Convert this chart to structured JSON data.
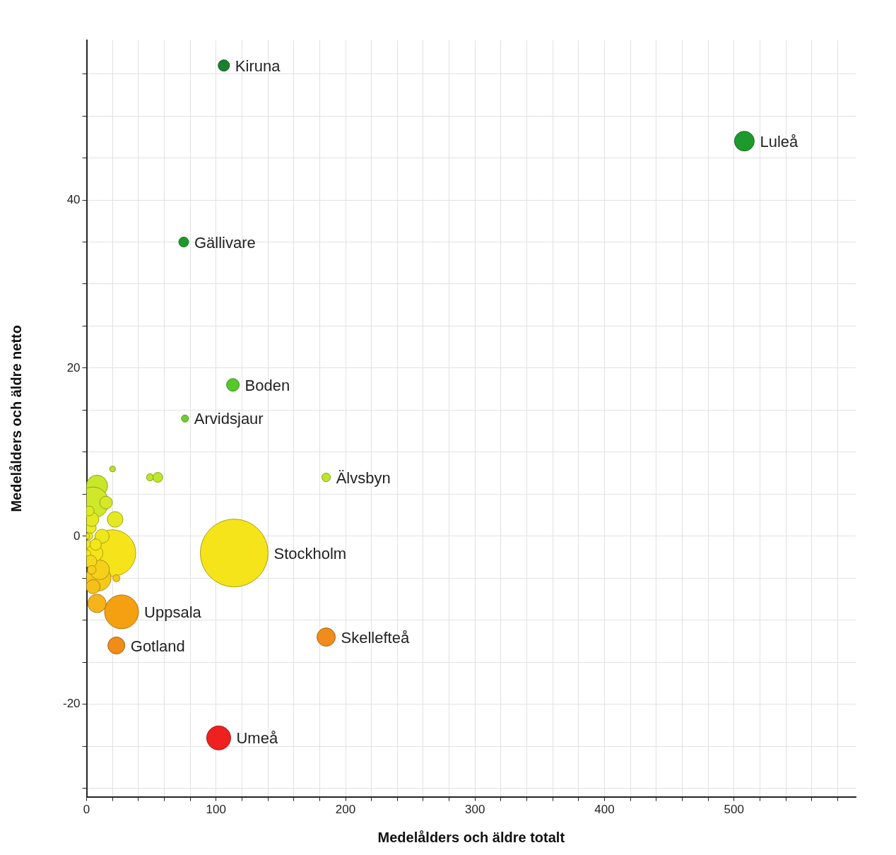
{
  "chart_data": {
    "type": "bubble",
    "xlabel": "Medelålders och äldre totalt",
    "ylabel": "Medelålders och äldre netto",
    "x": [
      106,
      508,
      75,
      113,
      76,
      185,
      114,
      27,
      23,
      185,
      102,
      20,
      49,
      55,
      8,
      5,
      20,
      22,
      8,
      9,
      23,
      10,
      3,
      2,
      1,
      4,
      6,
      3,
      12,
      5,
      2,
      1,
      0,
      15,
      7,
      4
    ],
    "values": [
      56,
      47,
      35,
      18,
      14,
      7,
      -2,
      -9,
      -13,
      -12,
      -24,
      8,
      7,
      7,
      6,
      4,
      -2,
      2,
      -8,
      -5,
      -5,
      -4,
      1,
      0,
      -1,
      2,
      -2,
      -3,
      0,
      -6,
      3,
      -2,
      0,
      4,
      -1,
      -4
    ],
    "sizes": [
      0.028,
      0.085,
      0.021,
      0.035,
      0.011,
      0.016,
      1,
      0.25,
      0.063,
      0.073,
      0.125,
      0.007,
      0.011,
      0.021,
      0.098,
      0.21,
      0.47,
      0.053,
      0.073,
      0.14,
      0.011,
      0.085,
      0.028,
      0.011,
      0.016,
      0.043,
      0.063,
      0.035,
      0.043,
      0.043,
      0.021,
      0.007,
      0.007,
      0.035,
      0.028,
      0.016
    ],
    "colors": [
      "#1a7f2e",
      "#1e9a2c",
      "#1f9a2a",
      "#55c82a",
      "#6fd02a",
      "#bde62a",
      "#f5e41a",
      "#f5a010",
      "#f08c1a",
      "#f08c1a",
      "#ee2020",
      "#b8e22a",
      "#bde62a",
      "#bde62a",
      "#c8e62a",
      "#cfe82a",
      "#f5e41a",
      "#e3ea22",
      "#f5b41a",
      "#f5c81a",
      "#f5c81a",
      "#f5d01a",
      "#e8ec20",
      "#ece81e",
      "#f2e61c",
      "#e3ea22",
      "#f5e41a",
      "#f5d81a",
      "#ece81e",
      "#f5c01a",
      "#dcea24",
      "#f5e41a",
      "#ece81e",
      "#d6e826",
      "#f2e61c",
      "#f5d01a"
    ],
    "annotations": [
      {
        "text": "Kiruna",
        "x": 106,
        "y": 56
      },
      {
        "text": "Luleå",
        "x": 508,
        "y": 47
      },
      {
        "text": "Gällivare",
        "x": 75,
        "y": 35
      },
      {
        "text": "Boden",
        "x": 113,
        "y": 18
      },
      {
        "text": "Arvidsjaur",
        "x": 76,
        "y": 14
      },
      {
        "text": "Älvsbyn",
        "x": 185,
        "y": 7
      },
      {
        "text": "Stockholm",
        "x": 114,
        "y": -2
      },
      {
        "text": "Uppsala",
        "x": 27,
        "y": -9
      },
      {
        "text": "Gotland",
        "x": 23,
        "y": -13
      },
      {
        "text": "Skellefteå",
        "x": 185,
        "y": -12
      },
      {
        "text": "Umeå",
        "x": 102,
        "y": -24
      }
    ],
    "xlim": [
      0,
      594
    ],
    "xticks": [
      0,
      {
        "value": 20,
        "label": null
      },
      {
        "value": 40,
        "label": null
      },
      {
        "value": 60,
        "label": null
      },
      {
        "value": 80,
        "label": null
      },
      100,
      {
        "value": 120,
        "label": null
      },
      {
        "value": 140,
        "label": null
      },
      {
        "value": 160,
        "label": null
      },
      {
        "value": 180,
        "label": null
      },
      200,
      {
        "value": 220,
        "label": null
      },
      {
        "value": 240,
        "label": null
      },
      {
        "value": 260,
        "label": null
      },
      {
        "value": 280,
        "label": null
      },
      300,
      {
        "value": 320,
        "label": null
      },
      {
        "value": 340,
        "label": null
      },
      {
        "value": 360,
        "label": null
      },
      {
        "value": 380,
        "label": null
      },
      400,
      {
        "value": 420,
        "label": null
      },
      {
        "value": 440,
        "label": null
      },
      {
        "value": 460,
        "label": null
      },
      {
        "value": 480,
        "label": null
      },
      500,
      {
        "value": 520,
        "label": null
      },
      {
        "value": 540,
        "label": null
      },
      {
        "value": 560,
        "label": null
      },
      {
        "value": 580,
        "label": null
      }
    ],
    "ylim": [
      -31,
      59
    ],
    "yticks": [
      {
        "value": -30,
        "label": null
      },
      {
        "value": -25,
        "label": null
      },
      -20,
      {
        "value": -15,
        "label": null
      },
      {
        "value": -10,
        "label": null
      },
      {
        "value": -5,
        "label": null
      },
      0,
      {
        "value": 5,
        "label": null
      },
      {
        "value": 10,
        "label": null
      },
      {
        "value": 15,
        "label": null
      },
      20,
      {
        "value": 25,
        "label": null
      },
      {
        "value": 30,
        "label": null
      },
      {
        "value": 35,
        "label": null
      },
      40,
      {
        "value": 45,
        "label": null
      },
      {
        "value": 50,
        "label": null
      },
      {
        "value": 55,
        "label": null
      }
    ],
    "grid": true,
    "legend": false,
    "marker": "circle"
  }
}
